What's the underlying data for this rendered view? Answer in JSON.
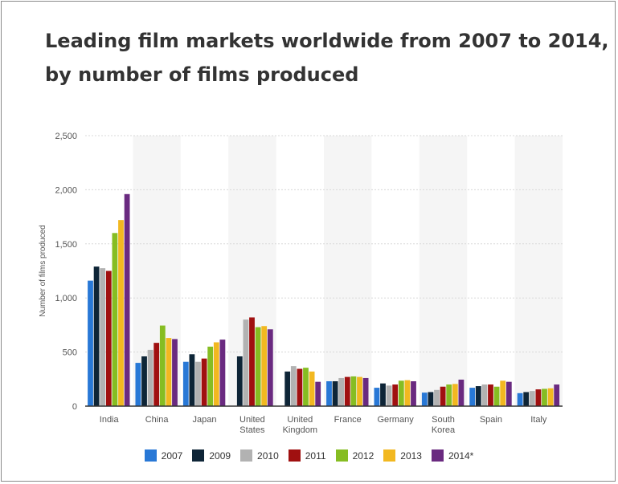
{
  "chart_data": {
    "type": "bar",
    "title": "Leading film markets worldwide from 2007 to 2014,",
    "subtitle": "by number of films  produced",
    "ylabel": "Number of films produced",
    "ylim": [
      0,
      2500
    ],
    "yticks": [
      0,
      500,
      1000,
      1500,
      2000,
      2500
    ],
    "ytick_labels": [
      "0",
      "500",
      "1,000",
      "1,500",
      "2,000",
      "2,500"
    ],
    "grid": true,
    "legend_position": "bottom",
    "categories": [
      [
        "India"
      ],
      [
        "China"
      ],
      [
        "Japan"
      ],
      [
        "United",
        "States"
      ],
      [
        "United",
        "Kingdom"
      ],
      [
        "France"
      ],
      [
        "Germany"
      ],
      [
        "South",
        "Korea"
      ],
      [
        "Spain"
      ],
      [
        "Italy"
      ]
    ],
    "series": [
      {
        "name": "2007",
        "color": "#2878d6",
        "values": [
          1160,
          400,
          410,
          null,
          null,
          230,
          170,
          125,
          170,
          120
        ]
      },
      {
        "name": "2009",
        "color": "#0e2537",
        "values": [
          1290,
          460,
          480,
          460,
          320,
          230,
          210,
          130,
          185,
          130
        ]
      },
      {
        "name": "2010",
        "color": "#b2b2b2",
        "values": [
          1275,
          520,
          410,
          800,
          370,
          260,
          190,
          150,
          200,
          140
        ]
      },
      {
        "name": "2011",
        "color": "#a01010",
        "values": [
          1250,
          585,
          440,
          820,
          345,
          270,
          200,
          180,
          200,
          155
        ]
      },
      {
        "name": "2012",
        "color": "#86bd22",
        "values": [
          1600,
          745,
          550,
          730,
          355,
          275,
          235,
          200,
          180,
          160
        ]
      },
      {
        "name": "2013",
        "color": "#f2b820",
        "values": [
          1720,
          630,
          590,
          740,
          320,
          270,
          240,
          205,
          235,
          165
        ]
      },
      {
        "name": "2014*",
        "color": "#6a2a80",
        "values": [
          1960,
          620,
          615,
          710,
          225,
          260,
          230,
          245,
          225,
          200
        ]
      }
    ]
  }
}
